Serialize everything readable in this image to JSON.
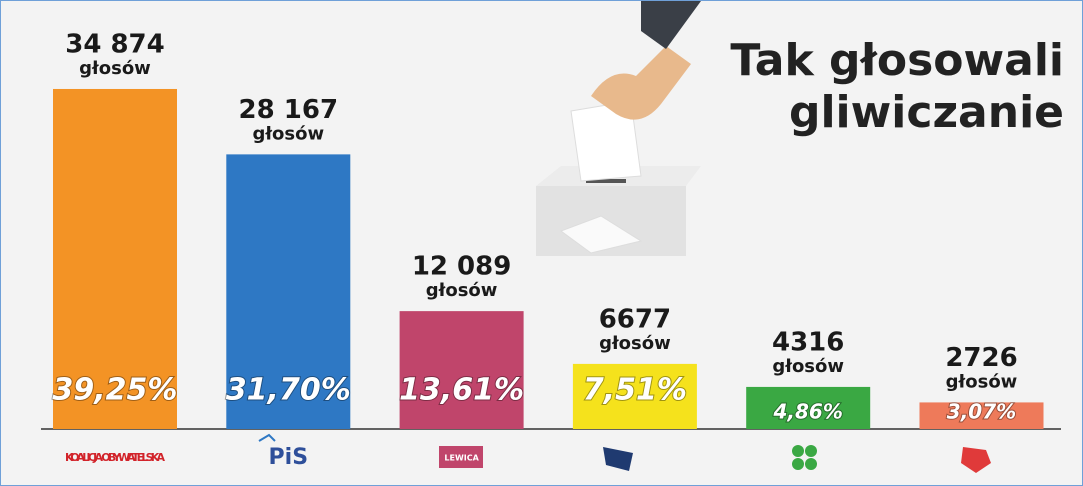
{
  "chart_data": {
    "type": "bar",
    "title": "Tak głosowali gliwiczanie",
    "categories": [
      "KOALICJA OBYWATELSKA",
      "PiS",
      "LEWICA",
      null,
      null,
      null
    ],
    "values": [
      34874,
      28167,
      12089,
      6677,
      4316,
      2726
    ],
    "value_labels": [
      "34 874",
      "28 167",
      "12 089",
      "6677",
      "4316",
      "2726"
    ],
    "unit_label": "głosów",
    "percentages": [
      39.25,
      31.7,
      13.61,
      7.51,
      4.86,
      3.07
    ],
    "percentage_labels": [
      "39,25%",
      "31,70%",
      "13,61%",
      "7,51%",
      "4,86%",
      "3,07%"
    ],
    "colors": [
      "#f39325",
      "#2e78c4",
      "#c0456b",
      "#f5e21c",
      "#3aa843",
      "#ee7a5a"
    ],
    "ylim": [
      0,
      40000
    ]
  }
}
